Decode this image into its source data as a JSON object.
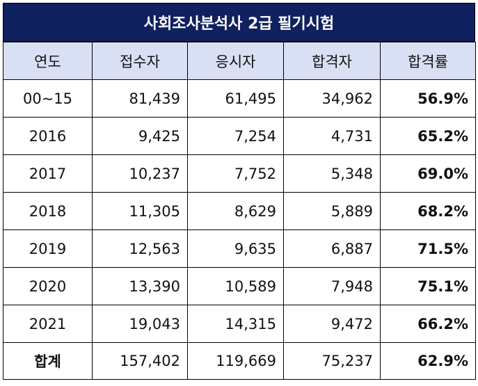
{
  "title": "사회조사분석사 2급 필기시험",
  "headers": [
    "연도",
    "접수자",
    "응시자",
    "합격자",
    "합격률"
  ],
  "rows": [
    {
      "year": "00~15",
      "applicants": "81,439",
      "takers": "61,495",
      "passers": "34,962",
      "rate": "56.9%"
    },
    {
      "year": "2016",
      "applicants": "9,425",
      "takers": "7,254",
      "passers": "4,731",
      "rate": "65.2%"
    },
    {
      "year": "2017",
      "applicants": "10,237",
      "takers": "7,752",
      "passers": "5,348",
      "rate": "69.0%"
    },
    {
      "year": "2018",
      "applicants": "11,305",
      "takers": "8,629",
      "passers": "5,889",
      "rate": "68.2%"
    },
    {
      "year": "2019",
      "applicants": "12,563",
      "takers": "9,635",
      "passers": "6,887",
      "rate": "71.5%"
    },
    {
      "year": "2020",
      "applicants": "13,390",
      "takers": "10,589",
      "passers": "7,948",
      "rate": "75.1%"
    },
    {
      "year": "2021",
      "applicants": "19,043",
      "takers": "14,315",
      "passers": "9,472",
      "rate": "66.2%"
    }
  ],
  "total": {
    "label": "합계",
    "applicants": "157,402",
    "takers": "119,669",
    "passers": "75,237",
    "rate": "62.9%"
  },
  "colors": {
    "title_bg": "#11205f",
    "header_bg": "#d9e0f3"
  }
}
